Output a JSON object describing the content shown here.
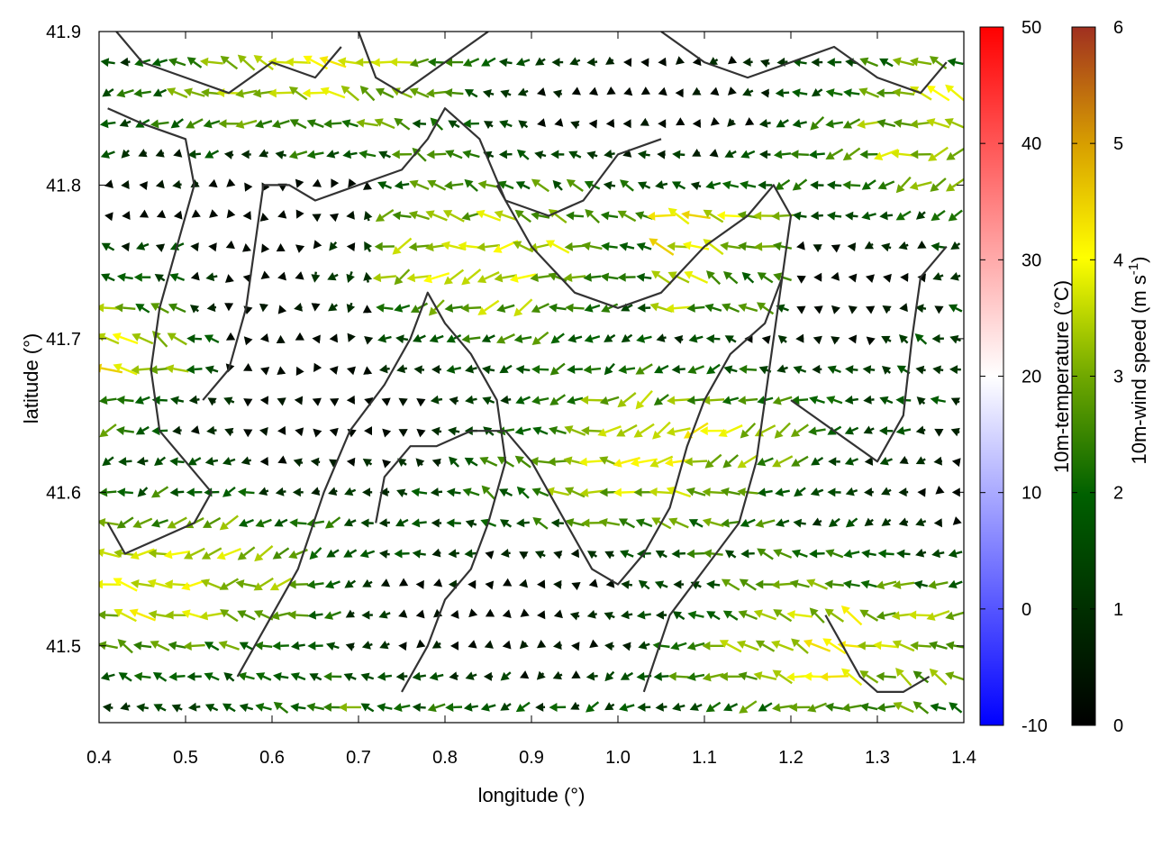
{
  "chart_data": {
    "type": "vector-field",
    "xlabel": "longitude (°)",
    "ylabel": "latitude (°)",
    "xlim": [
      0.4,
      1.4
    ],
    "ylim": [
      41.45,
      41.9
    ],
    "x_ticks": [
      "0.4",
      "0.5",
      "0.6",
      "0.7",
      "0.8",
      "0.9",
      "1.0",
      "1.1",
      "1.2",
      "1.3",
      "1.4"
    ],
    "x_tick_values": [
      0.4,
      0.5,
      0.6,
      0.7,
      0.8,
      0.9,
      1.0,
      1.1,
      1.2,
      1.3,
      1.4
    ],
    "y_ticks": [
      "41.5",
      "41.6",
      "41.7",
      "41.8",
      "41.9"
    ],
    "y_tick_values": [
      41.5,
      41.6,
      41.7,
      41.8,
      41.9
    ],
    "grid": false,
    "colorbars": [
      {
        "name": "temperature",
        "label": "10m-temperature (°C)",
        "range": [
          -10,
          50
        ],
        "ticks": [
          "-10",
          "0",
          "10",
          "20",
          "30",
          "40",
          "50"
        ],
        "tick_values": [
          -10,
          0,
          10,
          20,
          30,
          40,
          50
        ],
        "colors": [
          "#0000ff",
          "#ffffff",
          "#ff0000"
        ]
      },
      {
        "name": "wind-speed",
        "label_main": "10m-wind speed (m s",
        "label_sup": "-1",
        "label_end": ")",
        "range": [
          0,
          6
        ],
        "ticks": [
          "0",
          "1",
          "2",
          "3",
          "4",
          "5",
          "6"
        ],
        "tick_values": [
          0,
          1,
          2,
          3,
          4,
          5,
          6
        ],
        "colors": [
          "#000000",
          "#005000",
          "#208000",
          "#88b000",
          "#ffff00",
          "#d8a000",
          "#a03020"
        ]
      }
    ],
    "wind_field": {
      "grid_step_deg": 0.02,
      "dominant_direction": "from east",
      "speed_range": [
        0,
        6
      ],
      "vector_color": "wind-speed"
    },
    "boundaries": [
      [
        [
          0.41,
          41.85
        ],
        [
          0.45,
          41.84
        ],
        [
          0.5,
          41.83
        ],
        [
          0.51,
          41.8
        ],
        [
          0.49,
          41.76
        ],
        [
          0.47,
          41.72
        ],
        [
          0.46,
          41.68
        ],
        [
          0.47,
          41.64
        ],
        [
          0.5,
          41.62
        ],
        [
          0.53,
          41.6
        ],
        [
          0.51,
          41.58
        ],
        [
          0.47,
          41.57
        ],
        [
          0.43,
          41.56
        ],
        [
          0.41,
          41.58
        ]
      ],
      [
        [
          0.52,
          41.66
        ],
        [
          0.55,
          41.68
        ],
        [
          0.57,
          41.72
        ],
        [
          0.58,
          41.76
        ],
        [
          0.59,
          41.8
        ],
        [
          0.62,
          41.8
        ],
        [
          0.65,
          41.79
        ],
        [
          0.7,
          41.8
        ],
        [
          0.75,
          41.81
        ],
        [
          0.78,
          41.83
        ],
        [
          0.8,
          41.85
        ],
        [
          0.84,
          41.83
        ],
        [
          0.87,
          41.79
        ],
        [
          0.92,
          41.78
        ],
        [
          0.96,
          41.79
        ],
        [
          1.0,
          41.82
        ],
        [
          1.05,
          41.83
        ]
      ],
      [
        [
          0.56,
          41.48
        ],
        [
          0.6,
          41.52
        ],
        [
          0.63,
          41.55
        ],
        [
          0.66,
          41.6
        ],
        [
          0.69,
          41.64
        ],
        [
          0.73,
          41.67
        ],
        [
          0.76,
          41.7
        ],
        [
          0.78,
          41.73
        ],
        [
          0.8,
          41.71
        ],
        [
          0.83,
          41.69
        ],
        [
          0.86,
          41.66
        ],
        [
          0.87,
          41.62
        ],
        [
          0.85,
          41.58
        ],
        [
          0.83,
          41.55
        ],
        [
          0.8,
          41.53
        ],
        [
          0.78,
          41.5
        ],
        [
          0.75,
          41.47
        ]
      ],
      [
        [
          0.72,
          41.58
        ],
        [
          0.73,
          41.61
        ],
        [
          0.76,
          41.63
        ],
        [
          0.79,
          41.63
        ],
        [
          0.83,
          41.64
        ],
        [
          0.87,
          41.64
        ],
        [
          0.9,
          41.62
        ],
        [
          0.94,
          41.58
        ],
        [
          0.97,
          41.55
        ],
        [
          1.0,
          41.54
        ],
        [
          1.03,
          41.56
        ],
        [
          1.06,
          41.59
        ],
        [
          1.08,
          41.63
        ],
        [
          1.1,
          41.66
        ],
        [
          1.13,
          41.69
        ],
        [
          1.17,
          41.71
        ],
        [
          1.19,
          41.74
        ]
      ],
      [
        [
          0.86,
          41.8
        ],
        [
          0.9,
          41.76
        ],
        [
          0.95,
          41.73
        ],
        [
          1.0,
          41.72
        ],
        [
          1.05,
          41.73
        ],
        [
          1.1,
          41.76
        ],
        [
          1.15,
          41.78
        ],
        [
          1.18,
          41.8
        ],
        [
          1.2,
          41.78
        ],
        [
          1.19,
          41.74
        ],
        [
          1.18,
          41.7
        ],
        [
          1.17,
          41.66
        ],
        [
          1.16,
          41.62
        ],
        [
          1.14,
          41.58
        ],
        [
          1.1,
          41.55
        ],
        [
          1.06,
          41.52
        ],
        [
          1.03,
          41.47
        ]
      ],
      [
        [
          0.7,
          41.9
        ],
        [
          0.72,
          41.87
        ],
        [
          0.75,
          41.86
        ],
        [
          0.8,
          41.88
        ],
        [
          0.85,
          41.9
        ]
      ],
      [
        [
          0.42,
          41.9
        ],
        [
          0.45,
          41.88
        ],
        [
          0.5,
          41.87
        ],
        [
          0.55,
          41.86
        ],
        [
          0.6,
          41.88
        ],
        [
          0.65,
          41.87
        ],
        [
          0.68,
          41.89
        ]
      ],
      [
        [
          1.05,
          41.9
        ],
        [
          1.1,
          41.88
        ],
        [
          1.15,
          41.87
        ],
        [
          1.2,
          41.88
        ],
        [
          1.25,
          41.89
        ],
        [
          1.3,
          41.87
        ],
        [
          1.35,
          41.86
        ],
        [
          1.38,
          41.88
        ]
      ],
      [
        [
          1.2,
          41.66
        ],
        [
          1.25,
          41.64
        ],
        [
          1.3,
          41.62
        ],
        [
          1.33,
          41.65
        ],
        [
          1.34,
          41.7
        ],
        [
          1.35,
          41.74
        ],
        [
          1.38,
          41.76
        ]
      ],
      [
        [
          1.24,
          41.52
        ],
        [
          1.26,
          41.5
        ],
        [
          1.28,
          41.48
        ],
        [
          1.3,
          41.47
        ],
        [
          1.33,
          41.47
        ],
        [
          1.36,
          41.48
        ]
      ]
    ]
  }
}
